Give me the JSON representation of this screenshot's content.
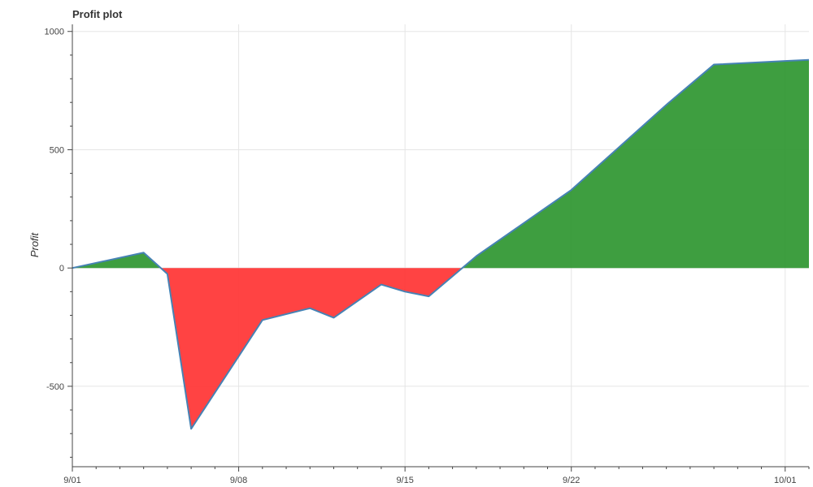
{
  "chart_data": {
    "type": "area",
    "title": "Profit plot",
    "xlabel": "",
    "ylabel": "Profit",
    "x_tick_labels": [
      "9/01",
      "9/08",
      "9/15",
      "9/22",
      "10/01"
    ],
    "x_tick_dates": [
      "2023-09-01",
      "2023-09-08",
      "2023-09-15",
      "2023-09-22",
      "2023-10-01"
    ],
    "y_ticks": [
      -500,
      0,
      500,
      1000
    ],
    "ylim": [
      -840,
      1030
    ],
    "xlim": [
      "2023-09-01",
      "2023-10-02"
    ],
    "grid": true,
    "colors": {
      "positive_fill": "#2e9630",
      "negative_fill": "#ff3333",
      "line": "#4682b4"
    },
    "series": [
      {
        "x": [
          "2023-09-01",
          "2023-09-04",
          "2023-09-05",
          "2023-09-06",
          "2023-09-09",
          "2023-09-11",
          "2023-09-12",
          "2023-09-14",
          "2023-09-15",
          "2023-09-16",
          "2023-09-18",
          "2023-09-19",
          "2023-09-22",
          "2023-09-23",
          "2023-09-26",
          "2023-09-28",
          "2023-09-30",
          "2023-10-01",
          "2023-10-02"
        ],
        "y": [
          0,
          65,
          -25,
          -680,
          -220,
          -170,
          -210,
          -70,
          -100,
          -120,
          50,
          120,
          330,
          420,
          690,
          860,
          870,
          875,
          880
        ]
      }
    ]
  }
}
